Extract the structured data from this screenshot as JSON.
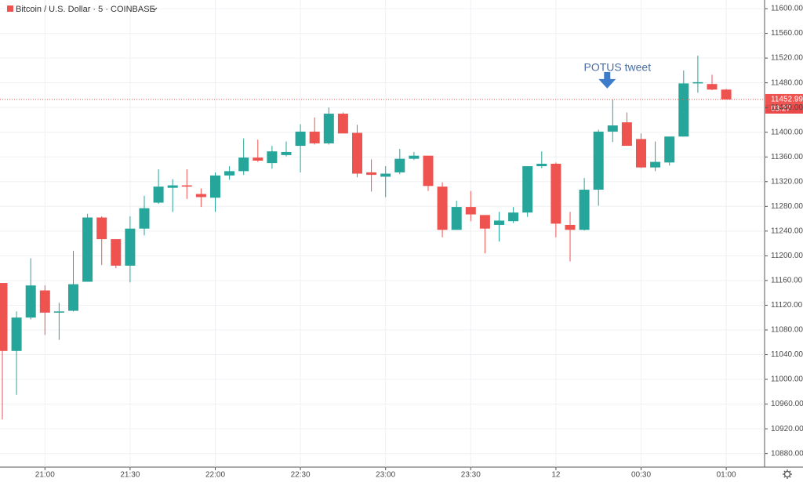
{
  "header": {
    "title": "Bitcoin / U.S. Dollar · 5 · COINBASE"
  },
  "chart_data": {
    "type": "candlestick",
    "annotation": "POTUS tweet",
    "annotation_index": 43,
    "up_color": "#26a69a",
    "down_color": "#ef5350",
    "grid": true,
    "last_price": 11452.99,
    "countdown": "03:27",
    "categories": [
      null,
      null,
      null,
      "21:00",
      null,
      null,
      null,
      null,
      null,
      "21:30",
      null,
      null,
      null,
      null,
      null,
      "22:00",
      null,
      null,
      null,
      null,
      null,
      "22:30",
      null,
      null,
      null,
      null,
      null,
      "23:00",
      null,
      null,
      null,
      null,
      null,
      "23:30",
      null,
      null,
      null,
      null,
      null,
      "12",
      null,
      null,
      null,
      null,
      null,
      "00:30",
      null,
      null,
      null,
      null,
      null,
      "01:00"
    ],
    "open": [
      11156,
      11046,
      11100,
      11144,
      11108,
      11111,
      11158,
      11262,
      11227,
      11184,
      11244,
      11286,
      11310,
      11314,
      11300,
      11294,
      11330,
      11337,
      11359,
      11350,
      11363,
      11378,
      11401,
      11382,
      11430,
      11399,
      11335,
      11328,
      11335,
      11357,
      11362,
      11312,
      11242,
      11279,
      11266,
      11250,
      11256,
      11270,
      11345,
      11349,
      11250,
      11242,
      11307,
      11401,
      11416,
      11389,
      11343,
      11351,
      11393,
      11479,
      11478,
      11469
    ],
    "high": [
      11156,
      11110,
      11196,
      11152,
      11124,
      11208,
      11268,
      11264,
      11227,
      11264,
      11297,
      11340,
      11324,
      11340,
      11309,
      11335,
      11345,
      11390,
      11388,
      11378,
      11385,
      11413,
      11424,
      11440,
      11432,
      11412,
      11356,
      11345,
      11373,
      11368,
      11362,
      11319,
      11289,
      11305,
      11266,
      11271,
      11279,
      11345,
      11369,
      11351,
      11271,
      11326,
      11404,
      11453,
      11432,
      11398,
      11385,
      11393,
      11500,
      11524,
      11493,
      11470
    ],
    "low": [
      10935,
      10975,
      11097,
      11072,
      11064,
      11110,
      11158,
      11185,
      11180,
      11157,
      11233,
      11284,
      11271,
      11292,
      11279,
      11271,
      11323,
      11331,
      11352,
      11341,
      11361,
      11335,
      11380,
      11380,
      11398,
      11327,
      11304,
      11295,
      11332,
      11355,
      11305,
      11230,
      11242,
      11256,
      11204,
      11223,
      11253,
      11263,
      11342,
      11230,
      11191,
      11241,
      11281,
      11384,
      11378,
      11342,
      11337,
      11346,
      11393,
      11464,
      11468,
      11453
    ],
    "close": [
      11046,
      11100,
      11152,
      11108,
      11110,
      11154,
      11262,
      11227,
      11184,
      11244,
      11277,
      11312,
      11314,
      11312,
      11295,
      11330,
      11337,
      11359,
      11354,
      11369,
      11368,
      11401,
      11382,
      11430,
      11398,
      11333,
      11331,
      11333,
      11357,
      11362,
      11313,
      11242,
      11279,
      11267,
      11244,
      11257,
      11270,
      11345,
      11349,
      11252,
      11242,
      11307,
      11401,
      11411,
      11378,
      11343,
      11352,
      11393,
      11479,
      11481,
      11469,
      11453
    ],
    "ylim": [
      10858,
      11614
    ],
    "yticks": [
      {
        "value": 10880,
        "label": "10880.00"
      },
      {
        "value": 10920,
        "label": "10920.00"
      },
      {
        "value": 10960,
        "label": "10960.00"
      },
      {
        "value": 11000,
        "label": "11000.00"
      },
      {
        "value": 11040,
        "label": "11040.00"
      },
      {
        "value": 11080,
        "label": "11080.00"
      },
      {
        "value": 11120,
        "label": "11120.00"
      },
      {
        "value": 11160,
        "label": "11160.00"
      },
      {
        "value": 11200,
        "label": "11200.00"
      },
      {
        "value": 11240,
        "label": "11240.00"
      },
      {
        "value": 11280,
        "label": "11280.00"
      },
      {
        "value": 11320,
        "label": "11320.00"
      },
      {
        "value": 11360,
        "label": "11360.00"
      },
      {
        "value": 11400,
        "label": "11400.00"
      },
      {
        "value": 11440,
        "label": "11440.00"
      },
      {
        "value": 11480,
        "label": "11480.00"
      },
      {
        "value": 11520,
        "label": "11520.00"
      },
      {
        "value": 11560,
        "label": "11560.00"
      },
      {
        "value": 11600,
        "label": "11600.00"
      }
    ]
  }
}
